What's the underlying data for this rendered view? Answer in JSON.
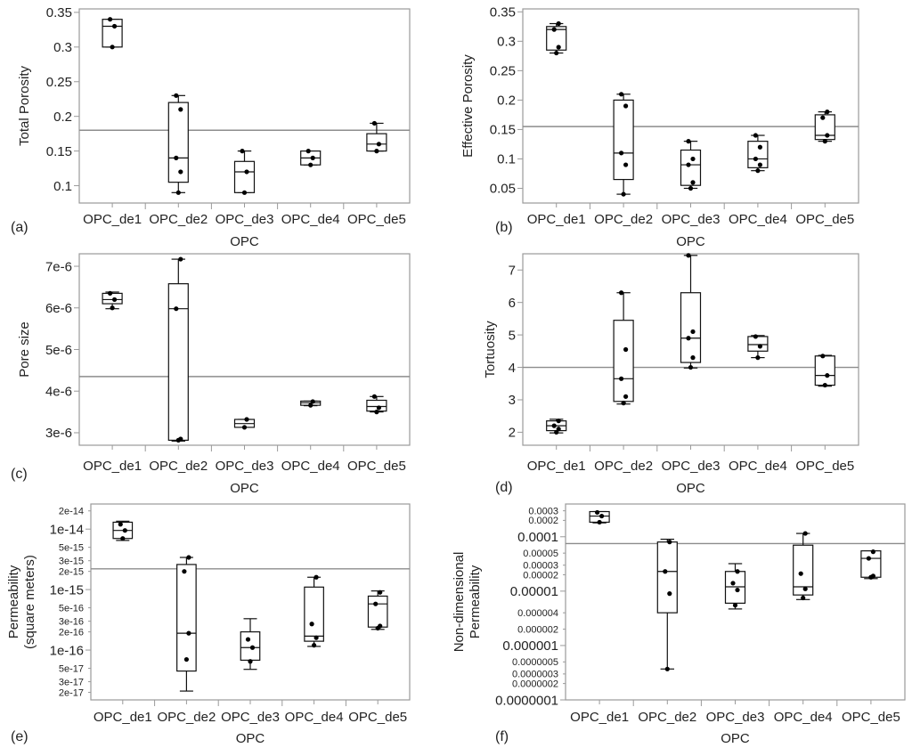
{
  "chart_data": [
    {
      "panel": "(a)",
      "type": "box",
      "scale": "linear",
      "categories": [
        "OPC_de1",
        "OPC_de2",
        "OPC_de3",
        "OPC_de4",
        "OPC_de5"
      ],
      "ylabel": "Total Porosity",
      "xlabel": "OPC",
      "ylim": [
        0.075,
        0.355
      ],
      "yticks": [
        0.1,
        0.15,
        0.2,
        0.25,
        0.3,
        0.35
      ],
      "ytick_labels": [
        "0.1",
        "0.15",
        "0.2",
        "0.25",
        "0.3",
        "0.35"
      ],
      "reference_line": 0.18,
      "boxes": [
        {
          "min": 0.3,
          "q1": 0.3,
          "median": 0.33,
          "q3": 0.34,
          "max": 0.34,
          "points": [
            0.3,
            0.33,
            0.34
          ]
        },
        {
          "min": 0.09,
          "q1": 0.105,
          "median": 0.14,
          "q3": 0.22,
          "max": 0.23,
          "points": [
            0.09,
            0.12,
            0.14,
            0.21,
            0.23
          ]
        },
        {
          "min": 0.09,
          "q1": 0.09,
          "median": 0.12,
          "q3": 0.135,
          "max": 0.15,
          "points": [
            0.09,
            0.12,
            0.15
          ]
        },
        {
          "min": 0.13,
          "q1": 0.13,
          "median": 0.14,
          "q3": 0.15,
          "max": 0.15,
          "points": [
            0.13,
            0.14,
            0.15
          ]
        },
        {
          "min": 0.15,
          "q1": 0.15,
          "median": 0.16,
          "q3": 0.175,
          "max": 0.19,
          "points": [
            0.15,
            0.16,
            0.19
          ]
        }
      ]
    },
    {
      "panel": "(b)",
      "type": "box",
      "scale": "linear",
      "categories": [
        "OPC_de1",
        "OPC_de2",
        "OPC_de3",
        "OPC_de4",
        "OPC_de5"
      ],
      "ylabel": "Effective Porosity",
      "xlabel": "OPC",
      "ylim": [
        0.025,
        0.355
      ],
      "yticks": [
        0.05,
        0.1,
        0.15,
        0.2,
        0.25,
        0.3,
        0.35
      ],
      "ytick_labels": [
        "0.05",
        "0.1",
        "0.15",
        "0.2",
        "0.25",
        "0.3",
        "0.35"
      ],
      "reference_line": 0.155,
      "boxes": [
        {
          "min": 0.28,
          "q1": 0.285,
          "median": 0.32,
          "q3": 0.325,
          "max": 0.33,
          "points": [
            0.28,
            0.29,
            0.32,
            0.33
          ]
        },
        {
          "min": 0.04,
          "q1": 0.065,
          "median": 0.11,
          "q3": 0.2,
          "max": 0.21,
          "points": [
            0.04,
            0.09,
            0.11,
            0.19,
            0.21
          ]
        },
        {
          "min": 0.05,
          "q1": 0.055,
          "median": 0.09,
          "q3": 0.115,
          "max": 0.13,
          "points": [
            0.05,
            0.06,
            0.09,
            0.1,
            0.13
          ]
        },
        {
          "min": 0.08,
          "q1": 0.085,
          "median": 0.1,
          "q3": 0.13,
          "max": 0.14,
          "points": [
            0.08,
            0.09,
            0.1,
            0.12,
            0.14
          ]
        },
        {
          "min": 0.13,
          "q1": 0.133,
          "median": 0.14,
          "q3": 0.175,
          "max": 0.18,
          "points": [
            0.13,
            0.14,
            0.17,
            0.18
          ]
        }
      ]
    },
    {
      "panel": "(c)",
      "type": "box",
      "scale": "linear",
      "categories": [
        "OPC_de1",
        "OPC_de2",
        "OPC_de3",
        "OPC_de4",
        "OPC_de5"
      ],
      "ylabel": "Pore size",
      "xlabel": "OPC",
      "ylim": [
        2.7e-06,
        7.3e-06
      ],
      "yticks": [
        3e-06,
        4e-06,
        5e-06,
        6e-06,
        7e-06
      ],
      "ytick_labels": [
        "3e-6",
        "4e-6",
        "5e-6",
        "6e-6",
        "7e-6"
      ],
      "reference_line": 4.35e-06,
      "boxes": [
        {
          "min": 5.98e-06,
          "q1": 6.1e-06,
          "median": 6.2e-06,
          "q3": 6.35e-06,
          "max": 6.38e-06,
          "points": [
            6e-06,
            6.2e-06,
            6.35e-06
          ]
        },
        {
          "min": 2.8e-06,
          "q1": 2.82e-06,
          "median": 5.98e-06,
          "q3": 6.58e-06,
          "max": 7.17e-06,
          "points": [
            2.82e-06,
            2.85e-06,
            5.98e-06,
            7.17e-06
          ]
        },
        {
          "min": 3.13e-06,
          "q1": 3.13e-06,
          "median": 3.22e-06,
          "q3": 3.32e-06,
          "max": 3.32e-06,
          "points": [
            3.13e-06,
            3.32e-06
          ]
        },
        {
          "min": 3.65e-06,
          "q1": 3.66e-06,
          "median": 3.72e-06,
          "q3": 3.76e-06,
          "max": 3.76e-06,
          "points": [
            3.66e-06,
            3.75e-06
          ]
        },
        {
          "min": 3.5e-06,
          "q1": 3.52e-06,
          "median": 3.63e-06,
          "q3": 3.78e-06,
          "max": 3.87e-06,
          "points": [
            3.5e-06,
            3.6e-06,
            3.87e-06
          ]
        }
      ]
    },
    {
      "panel": "(d)",
      "type": "box",
      "scale": "linear",
      "categories": [
        "OPC_de1",
        "OPC_de2",
        "OPC_de3",
        "OPC_de4",
        "OPC_de5"
      ],
      "ylabel": "Tortuosity",
      "xlabel": "OPC",
      "ylim": [
        1.6,
        7.5
      ],
      "yticks": [
        2,
        3,
        4,
        5,
        6,
        7
      ],
      "ytick_labels": [
        "2",
        "3",
        "4",
        "5",
        "6",
        "7"
      ],
      "reference_line": 4.0,
      "boxes": [
        {
          "min": 1.98,
          "q1": 2.05,
          "median": 2.2,
          "q3": 2.35,
          "max": 2.4,
          "points": [
            2.0,
            2.1,
            2.2,
            2.35
          ]
        },
        {
          "min": 2.87,
          "q1": 2.95,
          "median": 3.65,
          "q3": 5.45,
          "max": 6.3,
          "points": [
            2.9,
            3.1,
            3.65,
            4.55,
            6.3
          ]
        },
        {
          "min": 3.98,
          "q1": 4.15,
          "median": 4.9,
          "q3": 6.3,
          "max": 7.45,
          "points": [
            4.0,
            4.3,
            4.9,
            5.1,
            7.45
          ]
        },
        {
          "min": 4.3,
          "q1": 4.5,
          "median": 4.7,
          "q3": 4.95,
          "max": 4.98,
          "points": [
            4.3,
            4.65,
            4.95
          ]
        },
        {
          "min": 3.42,
          "q1": 3.45,
          "median": 3.75,
          "q3": 4.35,
          "max": 4.37,
          "points": [
            3.45,
            3.75,
            4.35
          ]
        }
      ]
    },
    {
      "panel": "(e)",
      "type": "box",
      "scale": "log",
      "categories": [
        "OPC_de1",
        "OPC_de2",
        "OPC_de3",
        "OPC_de4",
        "OPC_de5"
      ],
      "ylabel": [
        "Permeability",
        "(square meters)"
      ],
      "xlabel": "OPC",
      "ylim": [
        1.5e-17,
        2.6e-14
      ],
      "yticks": [
        2e-17,
        3e-17,
        5e-17,
        1e-16,
        2e-16,
        3e-16,
        5e-16,
        1e-15,
        2e-15,
        3e-15,
        5e-15,
        1e-14,
        2e-14
      ],
      "ytick_labels": [
        "2e-17",
        "3e-17",
        "5e-17",
        "1e-16",
        "2e-16",
        "3e-16",
        "5e-16",
        "1e-15",
        "2e-15",
        "3e-15",
        "5e-15",
        "1e-14",
        "2e-14"
      ],
      "major_ticks": [
        "1e-16",
        "1e-15",
        "1e-14"
      ],
      "reference_line": 2.2e-15,
      "boxes": [
        {
          "min": 6.5e-15,
          "q1": 7e-15,
          "median": 9.5e-15,
          "q3": 1.3e-14,
          "max": 1.35e-14,
          "points": [
            7e-15,
            9.5e-15,
            1.2e-14
          ]
        },
        {
          "min": 2.1e-17,
          "q1": 4.5e-17,
          "median": 1.9e-16,
          "q3": 2.6e-15,
          "max": 3.4e-15,
          "points": [
            7e-17,
            1.9e-16,
            2e-15,
            3.4e-15
          ]
        },
        {
          "min": 4.8e-17,
          "q1": 6.8e-17,
          "median": 1.1e-16,
          "q3": 2e-16,
          "max": 3.3e-16,
          "points": [
            6.5e-17,
            1.1e-16,
            1.5e-16
          ]
        },
        {
          "min": 1.15e-16,
          "q1": 1.4e-16,
          "median": 1.7e-16,
          "q3": 1.1e-15,
          "max": 1.6e-15,
          "points": [
            1.2e-16,
            1.6e-16,
            2.7e-16,
            1.6e-15
          ]
        },
        {
          "min": 2.2e-16,
          "q1": 2.4e-16,
          "median": 5.8e-16,
          "q3": 7.8e-16,
          "max": 9.5e-16,
          "points": [
            2.3e-16,
            2.5e-16,
            5.8e-16,
            9e-16
          ]
        }
      ]
    },
    {
      "panel": "(f)",
      "type": "box",
      "scale": "log",
      "categories": [
        "OPC_de1",
        "OPC_de2",
        "OPC_de3",
        "OPC_de4",
        "OPC_de5"
      ],
      "ylabel": [
        "Non-dimensional",
        "Permeability"
      ],
      "xlabel": "OPC",
      "ylim": [
        1e-07,
        0.0004
      ],
      "yticks": [
        1e-07,
        2e-07,
        3e-07,
        5e-07,
        1e-06,
        2e-06,
        4e-06,
        1e-05,
        2e-05,
        3e-05,
        5e-05,
        0.0001,
        0.0002,
        0.0003
      ],
      "ytick_labels": [
        "0.0000001",
        "0.0000002",
        "0.0000003",
        "0.0000005",
        "0.000001",
        "0.000002",
        "0.000004",
        "0.00001",
        "0.00002",
        "0.00003",
        "0.00005",
        "0.0001",
        "0.0002",
        "0.0003"
      ],
      "major_ticks": [
        "0.0000001",
        "0.000001",
        "0.00001",
        "0.0001"
      ],
      "reference_line": 7.5e-05,
      "boxes": [
        {
          "min": 0.00018,
          "q1": 0.000185,
          "median": 0.00024,
          "q3": 0.00029,
          "max": 0.00029,
          "points": [
            0.000185,
            0.00024,
            0.00028
          ]
        },
        {
          "min": 3.7e-07,
          "q1": 4e-06,
          "median": 2.3e-05,
          "q3": 8e-05,
          "max": 9e-05,
          "points": [
            3.7e-07,
            9e-06,
            2.3e-05,
            8e-05
          ]
        },
        {
          "min": 4.7e-06,
          "q1": 6e-06,
          "median": 1.2e-05,
          "q3": 2.3e-05,
          "max": 3.2e-05,
          "points": [
            5.5e-06,
            1.05e-05,
            1.4e-05,
            2.3e-05
          ]
        },
        {
          "min": 7e-06,
          "q1": 8.5e-06,
          "median": 1.2e-05,
          "q3": 7e-05,
          "max": 0.000115,
          "points": [
            7.5e-06,
            1.1e-05,
            2.1e-05,
            0.000115
          ]
        },
        {
          "min": 1.7e-05,
          "q1": 1.8e-05,
          "median": 4e-05,
          "q3": 5.5e-05,
          "max": 5.5e-05,
          "points": [
            1.8e-05,
            1.9e-05,
            4e-05,
            5.3e-05
          ]
        }
      ]
    }
  ],
  "style": {
    "frame_color": "#9a9a9a",
    "box_color": "#111111",
    "point_color": "#000000",
    "reference_line_color": "#8c8c8c",
    "text_color": "#222222"
  }
}
